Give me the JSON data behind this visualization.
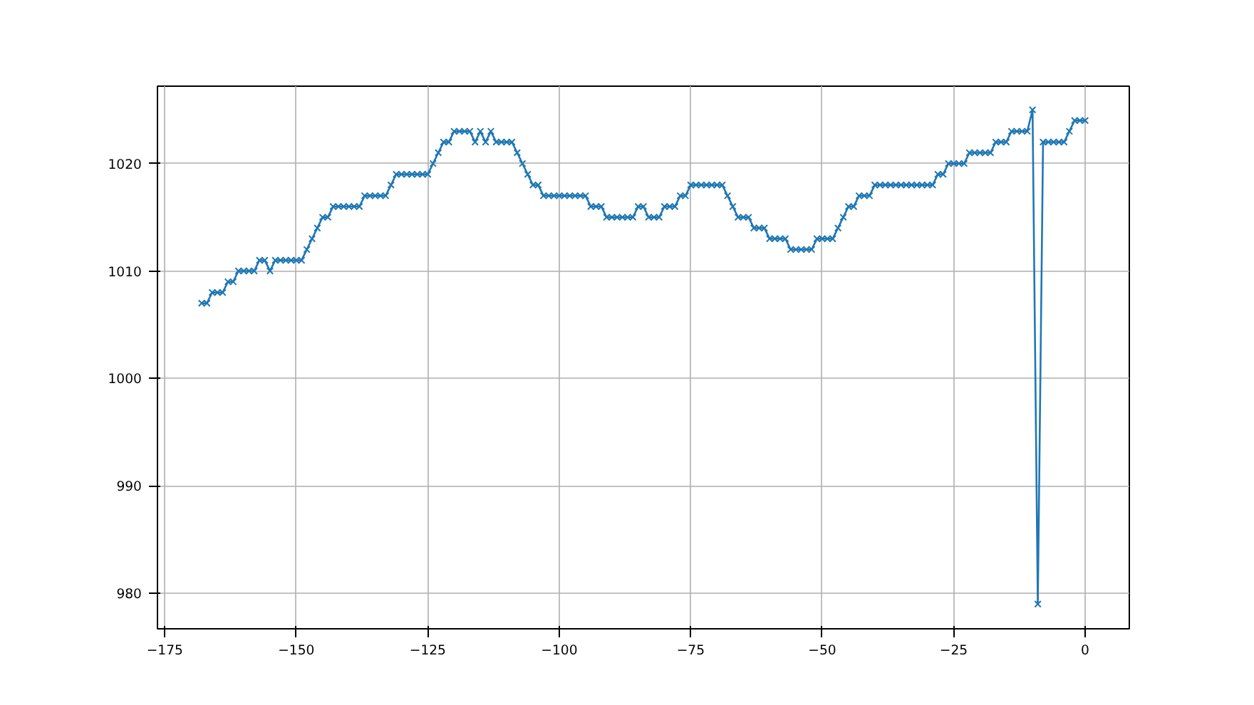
{
  "chart_data": {
    "type": "line",
    "marker": "cross",
    "grid": true,
    "xlim": [
      -176.4,
      8.4
    ],
    "ylim": [
      976.7,
      1027.2
    ],
    "xticks": [
      -175,
      -150,
      -125,
      -100,
      -75,
      -50,
      -25,
      0
    ],
    "yticks": [
      980,
      990,
      1000,
      1010,
      1020
    ],
    "x": [
      -168,
      -167,
      -166,
      -165,
      -164,
      -163,
      -162,
      -161,
      -160,
      -159,
      -158,
      -157,
      -156,
      -155,
      -154,
      -153,
      -152,
      -151,
      -150,
      -149,
      -148,
      -147,
      -146,
      -145,
      -144,
      -143,
      -142,
      -141,
      -140,
      -139,
      -138,
      -137,
      -136,
      -135,
      -134,
      -133,
      -132,
      -131,
      -130,
      -129,
      -128,
      -127,
      -126,
      -125,
      -124,
      -123,
      -122,
      -121,
      -120,
      -119,
      -118,
      -117,
      -116,
      -115,
      -114,
      -113,
      -112,
      -111,
      -110,
      -109,
      -108,
      -107,
      -106,
      -105,
      -104,
      -103,
      -102,
      -101,
      -100,
      -99,
      -98,
      -97,
      -96,
      -95,
      -94,
      -93,
      -92,
      -91,
      -90,
      -89,
      -88,
      -87,
      -86,
      -85,
      -84,
      -83,
      -82,
      -81,
      -80,
      -79,
      -78,
      -77,
      -76,
      -75,
      -74,
      -73,
      -72,
      -71,
      -70,
      -69,
      -68,
      -67,
      -66,
      -65,
      -64,
      -63,
      -62,
      -61,
      -60,
      -59,
      -58,
      -57,
      -56,
      -55,
      -54,
      -53,
      -52,
      -51,
      -50,
      -49,
      -48,
      -47,
      -46,
      -45,
      -44,
      -43,
      -42,
      -41,
      -40,
      -39,
      -38,
      -37,
      -36,
      -35,
      -34,
      -33,
      -32,
      -31,
      -30,
      -29,
      -28,
      -27,
      -26,
      -25,
      -24,
      -23,
      -22,
      -21,
      -20,
      -19,
      -18,
      -17,
      -16,
      -15,
      -14,
      -13,
      -12,
      -11,
      -10,
      -9,
      -8,
      -7,
      -6,
      -5,
      -4,
      -3,
      -2,
      -1,
      0
    ],
    "series": [
      {
        "color": "#1f77b4",
        "values": [
          1007,
          1007,
          1008,
          1008,
          1008,
          1009,
          1009,
          1010,
          1010,
          1010,
          1010,
          1011,
          1011,
          1010,
          1011,
          1011,
          1011,
          1011,
          1011,
          1011,
          1012,
          1013,
          1014,
          1015,
          1015,
          1016,
          1016,
          1016,
          1016,
          1016,
          1016,
          1017,
          1017,
          1017,
          1017,
          1017,
          1018,
          1019,
          1019,
          1019,
          1019,
          1019,
          1019,
          1019,
          1020,
          1021,
          1022,
          1022,
          1023,
          1023,
          1023,
          1023,
          1022,
          1023,
          1022,
          1023,
          1022,
          1022,
          1022,
          1022,
          1021,
          1020,
          1019,
          1018,
          1018,
          1017,
          1017,
          1017,
          1017,
          1017,
          1017,
          1017,
          1017,
          1017,
          1016,
          1016,
          1016,
          1015,
          1015,
          1015,
          1015,
          1015,
          1015,
          1016,
          1016,
          1015,
          1015,
          1015,
          1016,
          1016,
          1016,
          1017,
          1017,
          1018,
          1018,
          1018,
          1018,
          1018,
          1018,
          1018,
          1017,
          1016,
          1015,
          1015,
          1015,
          1014,
          1014,
          1014,
          1013,
          1013,
          1013,
          1013,
          1012,
          1012,
          1012,
          1012,
          1012,
          1013,
          1013,
          1013,
          1013,
          1014,
          1015,
          1016,
          1016,
          1017,
          1017,
          1017,
          1018,
          1018,
          1018,
          1018,
          1018,
          1018,
          1018,
          1018,
          1018,
          1018,
          1018,
          1018,
          1019,
          1019,
          1020,
          1020,
          1020,
          1020,
          1021,
          1021,
          1021,
          1021,
          1021,
          1022,
          1022,
          1022,
          1023,
          1023,
          1023,
          1023,
          1025,
          979,
          1022,
          1022,
          1022,
          1022,
          1022,
          1023,
          1024,
          1024,
          1024
        ]
      }
    ]
  }
}
